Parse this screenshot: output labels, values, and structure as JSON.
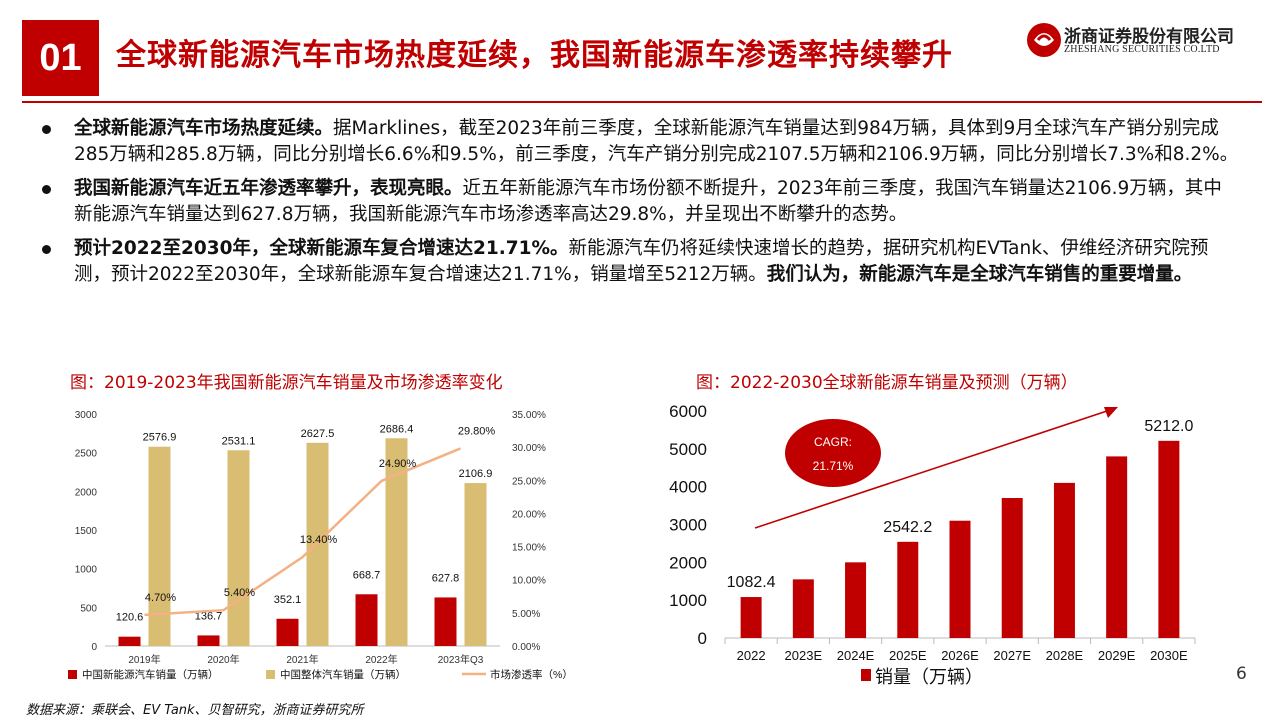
{
  "header": {
    "number": "01",
    "title": "全球新能源汽车市场热度延续，我国新能源车渗透率持续攀升",
    "logo_cn": "浙商证券股份有限公司",
    "logo_en": "ZHESHANG SECURITIES CO.LTD"
  },
  "bullets": [
    {
      "bold_lead": "全球新能源汽车市场热度延续。",
      "text": "据Marklines，截至2023年前三季度，全球新能源汽车销量达到984万辆，具体到9月全球汽车产销分别完成285万辆和285.8万辆，同比分别增长6.6%和9.5%，前三季度，汽车产销分别完成2107.5万辆和2106.9万辆，同比分别增长7.3%和8.2%。",
      "bold_tail": ""
    },
    {
      "bold_lead": "我国新能源汽车近五年渗透率攀升，表现亮眼。",
      "text": "近五年新能源汽车市场份额不断提升，2023年前三季度，我国汽车销量达2106.9万辆，其中新能源汽车销量达到627.8万辆，我国新能源汽车市场渗透率高达29.8%，并呈现出不断攀升的态势。",
      "bold_tail": ""
    },
    {
      "bold_lead": "预计2022至2030年，全球新能源车复合增速达21.71%。",
      "text": "新能源汽车仍将延续快速增长的趋势，据研究机构EVTank、伊维经济研究院预测，预计2022至2030年，全球新能源车复合增速达21.71%，销量增至5212万辆。",
      "bold_tail": "我们认为，新能源汽车是全球汽车销售的重要增量。"
    }
  ],
  "chart_data": [
    {
      "type": "bar",
      "title": "图：2019-2023年我国新能源汽车销量及市场渗透率变化",
      "categories": [
        "2019年",
        "2020年",
        "2021年",
        "2022年",
        "2023年Q3"
      ],
      "series": [
        {
          "name": "中国新能源汽车销量（万辆）",
          "type": "bar",
          "axis": "left",
          "color": "#c00000",
          "values": [
            120.6,
            136.7,
            352.1,
            668.7,
            627.8
          ],
          "labels": [
            "120.6",
            "136.7",
            "352.1",
            "668.7",
            "627.8"
          ]
        },
        {
          "name": "中国整体汽车销量（万辆）",
          "type": "bar",
          "axis": "left",
          "color": "#d9bd72",
          "values": [
            2576.9,
            2531.1,
            2627.5,
            2686.4,
            2106.9
          ],
          "labels": [
            "2576.9",
            "2531.1",
            "2627.5",
            "2686.4",
            "2106.9"
          ]
        },
        {
          "name": "市场渗透率（%）",
          "type": "line",
          "axis": "right",
          "color": "#f4b183",
          "values": [
            4.7,
            5.4,
            13.4,
            24.9,
            29.8
          ],
          "labels": [
            "4.70%",
            "5.40%",
            "13.40%",
            "24.90%",
            "29.80%"
          ]
        }
      ],
      "ylim": [
        0,
        3000
      ],
      "y_ticks": [
        "0",
        "500",
        "1000",
        "1500",
        "2000",
        "2500",
        "3000"
      ],
      "y2lim": [
        0,
        35
      ],
      "y2_ticks": [
        "0.00%",
        "5.00%",
        "10.00%",
        "15.00%",
        "20.00%",
        "25.00%",
        "30.00%",
        "35.00%"
      ],
      "legend_position": "bottom",
      "grid": false
    },
    {
      "type": "bar",
      "title": "图：2022-2030全球新能源车销量及预测（万辆）",
      "categories": [
        "2022",
        "2023E",
        "2024E",
        "2025E",
        "2026E",
        "2027E",
        "2028E",
        "2029E",
        "2030E"
      ],
      "series": [
        {
          "name": "销量（万辆）",
          "color": "#c00000",
          "values": [
            1082.4,
            1550,
            2000,
            2542.2,
            3100,
            3700,
            4100,
            4800,
            5212.0
          ]
        }
      ],
      "data_labels": {
        "0": "1082.4",
        "3": "2542.2",
        "8": "5212.0"
      },
      "ylim": [
        0,
        6000
      ],
      "y_ticks": [
        "0",
        "1000",
        "2000",
        "3000",
        "4000",
        "5000",
        "6000"
      ],
      "annotation": {
        "label": "CAGR:",
        "value": "21.71%"
      },
      "legend_position": "bottom",
      "grid": false
    }
  ],
  "footer": {
    "source": "数据来源：乘联会、EV Tank、贝智研究，浙商证券研究所",
    "page": "6"
  }
}
